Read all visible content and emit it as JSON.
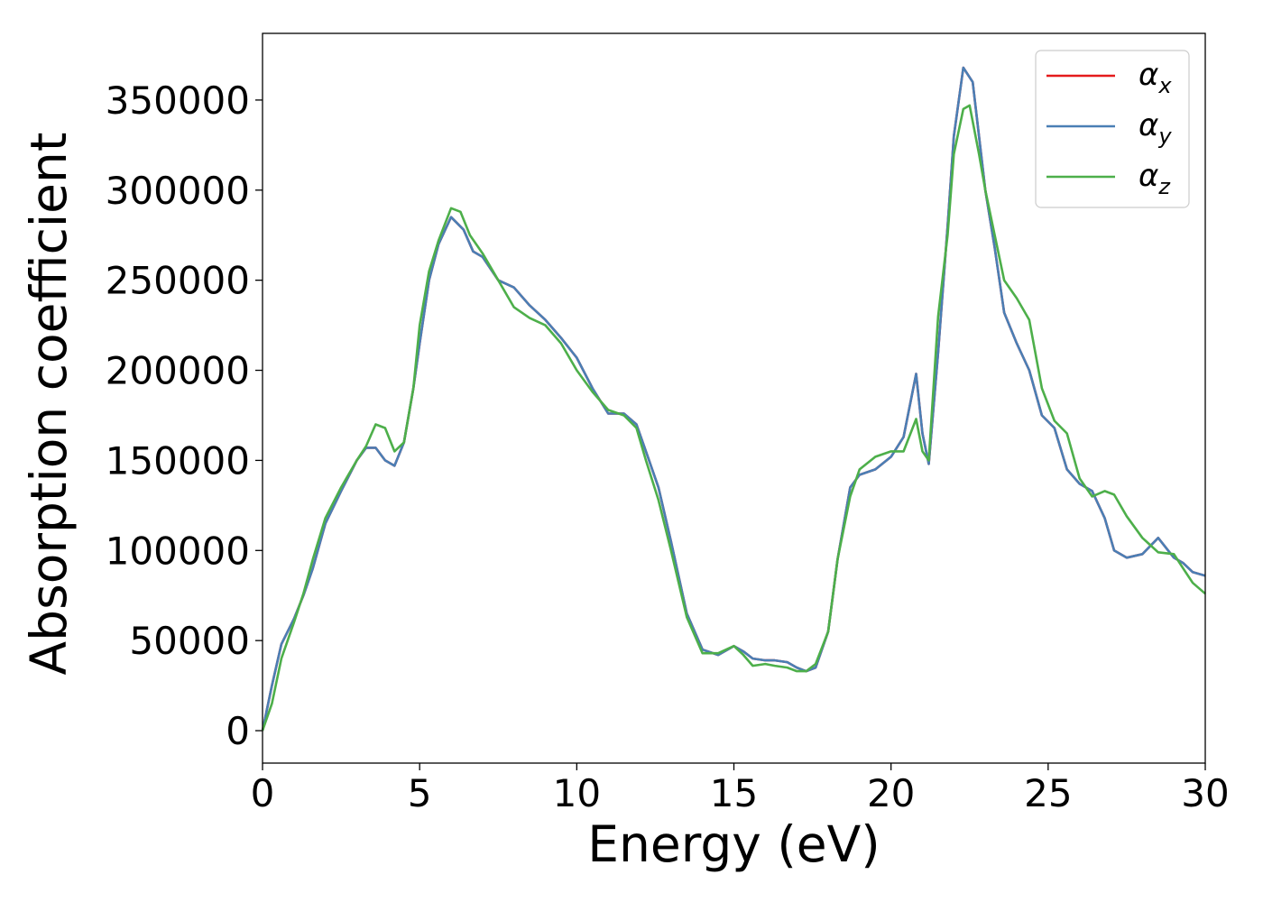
{
  "chart_data": {
    "type": "line",
    "xlabel": "Energy (eV)",
    "ylabel": "Absorption coefficient",
    "xlim": [
      0,
      30
    ],
    "ylim": [
      -18000,
      387000
    ],
    "xticks": [
      0,
      5,
      10,
      15,
      20,
      25,
      30
    ],
    "yticks": [
      0,
      50000,
      100000,
      150000,
      200000,
      250000,
      300000,
      350000
    ],
    "grid": false,
    "legend": "top-right",
    "series": [
      {
        "name": "α_x",
        "label_main": "α",
        "label_sub": "x",
        "color": "#e41a1c",
        "x": [
          0,
          0.3,
          0.6,
          1.0,
          1.3,
          1.6,
          2.0,
          2.5,
          3.0,
          3.3,
          3.6,
          3.9,
          4.2,
          4.5,
          4.8,
          5.0,
          5.3,
          5.6,
          6.0,
          6.4,
          6.7,
          7.0,
          7.5,
          8.0,
          8.5,
          9.0,
          9.5,
          10.0,
          10.5,
          11.0,
          11.5,
          11.9,
          12.2,
          12.6,
          13.0,
          13.5,
          14.0,
          14.5,
          15.0,
          15.3,
          15.6,
          16.0,
          16.3,
          16.7,
          17.0,
          17.3,
          17.6,
          18.0,
          18.3,
          18.7,
          19.0,
          19.5,
          20.0,
          20.4,
          20.8,
          21.0,
          21.2,
          21.5,
          21.8,
          22.0,
          22.3,
          22.6,
          22.8,
          23.0,
          23.3,
          23.6,
          24.0,
          24.4,
          24.8,
          25.2,
          25.6,
          26.0,
          26.4,
          26.8,
          27.1,
          27.5,
          28.0,
          28.5,
          29.0,
          29.3,
          29.6,
          30.0
        ],
        "values": [
          0,
          25000,
          48000,
          62000,
          75000,
          90000,
          115000,
          133000,
          150000,
          157000,
          157000,
          150000,
          147000,
          160000,
          190000,
          215000,
          250000,
          270000,
          285000,
          278000,
          266000,
          263000,
          250000,
          246000,
          236000,
          228000,
          218000,
          207000,
          190000,
          176000,
          176000,
          170000,
          155000,
          135000,
          105000,
          65000,
          45000,
          42000,
          47000,
          44000,
          40000,
          39000,
          39000,
          38000,
          35000,
          33000,
          35000,
          55000,
          95000,
          135000,
          142000,
          145000,
          152000,
          163000,
          198000,
          165000,
          148000,
          210000,
          280000,
          330000,
          368000,
          360000,
          330000,
          300000,
          268000,
          232000,
          215000,
          200000,
          175000,
          168000,
          145000,
          137000,
          133000,
          118000,
          100000,
          96000,
          98000,
          107000,
          96000,
          93000,
          88000,
          86000
        ]
      },
      {
        "name": "α_y",
        "label_main": "α",
        "label_sub": "y",
        "color": "#4a7fb5",
        "x": [
          0,
          0.3,
          0.6,
          1.0,
          1.3,
          1.6,
          2.0,
          2.5,
          3.0,
          3.3,
          3.6,
          3.9,
          4.2,
          4.5,
          4.8,
          5.0,
          5.3,
          5.6,
          6.0,
          6.4,
          6.7,
          7.0,
          7.5,
          8.0,
          8.5,
          9.0,
          9.5,
          10.0,
          10.5,
          11.0,
          11.5,
          11.9,
          12.2,
          12.6,
          13.0,
          13.5,
          14.0,
          14.5,
          15.0,
          15.3,
          15.6,
          16.0,
          16.3,
          16.7,
          17.0,
          17.3,
          17.6,
          18.0,
          18.3,
          18.7,
          19.0,
          19.5,
          20.0,
          20.4,
          20.8,
          21.0,
          21.2,
          21.5,
          21.8,
          22.0,
          22.3,
          22.6,
          22.8,
          23.0,
          23.3,
          23.6,
          24.0,
          24.4,
          24.8,
          25.2,
          25.6,
          26.0,
          26.4,
          26.8,
          27.1,
          27.5,
          28.0,
          28.5,
          29.0,
          29.3,
          29.6,
          30.0
        ],
        "values": [
          0,
          25000,
          48000,
          62000,
          75000,
          90000,
          115000,
          133000,
          150000,
          157000,
          157000,
          150000,
          147000,
          160000,
          190000,
          215000,
          250000,
          270000,
          285000,
          278000,
          266000,
          263000,
          250000,
          246000,
          236000,
          228000,
          218000,
          207000,
          190000,
          176000,
          176000,
          170000,
          155000,
          135000,
          105000,
          65000,
          45000,
          42000,
          47000,
          44000,
          40000,
          39000,
          39000,
          38000,
          35000,
          33000,
          35000,
          55000,
          95000,
          135000,
          142000,
          145000,
          152000,
          163000,
          198000,
          165000,
          148000,
          210000,
          280000,
          330000,
          368000,
          360000,
          330000,
          300000,
          268000,
          232000,
          215000,
          200000,
          175000,
          168000,
          145000,
          137000,
          133000,
          118000,
          100000,
          96000,
          98000,
          107000,
          96000,
          93000,
          88000,
          86000
        ]
      },
      {
        "name": "α_z",
        "label_main": "α",
        "label_sub": "z",
        "color": "#4daf4a",
        "x": [
          0,
          0.3,
          0.6,
          1.0,
          1.3,
          1.6,
          2.0,
          2.5,
          3.0,
          3.3,
          3.6,
          3.9,
          4.2,
          4.5,
          4.8,
          5.0,
          5.3,
          5.6,
          6.0,
          6.3,
          6.6,
          7.0,
          7.5,
          8.0,
          8.5,
          9.0,
          9.5,
          10.0,
          10.5,
          11.0,
          11.5,
          11.9,
          12.2,
          12.6,
          13.0,
          13.5,
          14.0,
          14.5,
          15.0,
          15.3,
          15.6,
          16.0,
          16.3,
          16.7,
          17.0,
          17.3,
          17.6,
          18.0,
          18.3,
          18.7,
          19.0,
          19.5,
          20.0,
          20.4,
          20.8,
          21.0,
          21.2,
          21.5,
          21.8,
          22.0,
          22.3,
          22.5,
          22.8,
          23.0,
          23.3,
          23.6,
          24.0,
          24.4,
          24.8,
          25.2,
          25.6,
          26.0,
          26.4,
          26.8,
          27.1,
          27.5,
          28.0,
          28.5,
          29.0,
          29.3,
          29.6,
          30.0
        ],
        "values": [
          0,
          15000,
          40000,
          60000,
          76000,
          95000,
          118000,
          135000,
          150000,
          158000,
          170000,
          168000,
          155000,
          160000,
          190000,
          225000,
          255000,
          272000,
          290000,
          288000,
          275000,
          265000,
          250000,
          235000,
          229000,
          225000,
          215000,
          200000,
          188000,
          178000,
          175000,
          168000,
          150000,
          128000,
          100000,
          63000,
          43000,
          43000,
          47000,
          42000,
          36000,
          37000,
          36000,
          35000,
          33000,
          33000,
          37000,
          55000,
          95000,
          130000,
          145000,
          152000,
          155000,
          155000,
          173000,
          155000,
          150000,
          230000,
          275000,
          320000,
          345000,
          347000,
          320000,
          300000,
          275000,
          250000,
          240000,
          228000,
          190000,
          172000,
          165000,
          140000,
          130000,
          133000,
          131000,
          119000,
          107000,
          99000,
          98000,
          90000,
          82000,
          76000
        ]
      }
    ]
  }
}
